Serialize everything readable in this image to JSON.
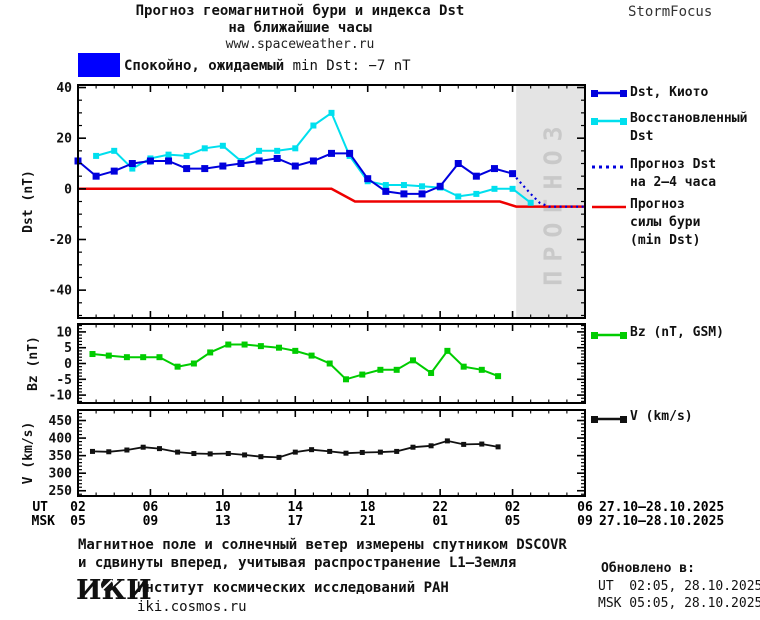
{
  "header": {
    "title_line1": "Прогноз геомагнитной бури и индекса Dst",
    "title_line2": "на ближайшие часы",
    "site": "www.spaceweather.ru",
    "brand": "StormFocus"
  },
  "status": {
    "label_bold": "Спокойно, ожидаемый",
    "label_rest": " min Dst: −7 nT",
    "box_color": "#0000ff"
  },
  "colors": {
    "dst_kyoto": "#0000dd",
    "dst_restored": "#00dfee",
    "dst_forecast": "#0000dd",
    "storm_forecast": "#ee0000",
    "bz": "#00cc00",
    "v": "#111111",
    "quiet_box": "#0000ff",
    "forecast_region_fill": "#e4e4e4",
    "forecast_region_text": "#c9c9c9"
  },
  "legend": {
    "items": [
      {
        "lines": [
          "Dst, Киото"
        ],
        "color": "#0000dd",
        "style": "solid",
        "squares": true
      },
      {
        "lines": [
          "Восстановленный",
          "Dst"
        ],
        "color": "#00dfee",
        "style": "solid",
        "squares": true
      },
      {
        "lines": [
          "Прогноз Dst",
          "на 2–4 часа"
        ],
        "color": "#0000dd",
        "style": "dotted",
        "squares": false
      },
      {
        "lines": [
          "Прогноз",
          "силы бури",
          "(min Dst)"
        ],
        "color": "#ee0000",
        "style": "solid",
        "squares": false
      },
      {
        "lines": [
          "Bz (nT, GSM)"
        ],
        "color": "#00cc00",
        "style": "solid",
        "squares": true
      },
      {
        "lines": [
          "V (km/s)"
        ],
        "color": "#111111",
        "style": "solid",
        "squares": true
      }
    ]
  },
  "axis": {
    "tick_hours": [
      2,
      6,
      10,
      14,
      18,
      22,
      26,
      30
    ],
    "ut_row_label": "UT",
    "msk_row_label": "MSK",
    "ut_ticks": [
      "02",
      "06",
      "10",
      "14",
      "18",
      "22",
      "02",
      "06"
    ],
    "msk_ticks": [
      "05",
      "09",
      "13",
      "17",
      "21",
      "01",
      "05",
      "09"
    ],
    "ut_date": "27.10–28.10.2025",
    "msk_date": "27.10–28.10.2025"
  },
  "chart_data": [
    {
      "type": "line",
      "panel": "dst",
      "ylabel": "Dst (nT)",
      "xlim": [
        2,
        30
      ],
      "ylim": [
        -51,
        41
      ],
      "yticks": [
        40,
        20,
        0,
        -20,
        -40
      ],
      "y_minor_step": 5,
      "forecast_region": {
        "x_start": 26.2,
        "x_end": 30,
        "label": "ПРОГНОЗ"
      },
      "series": [
        {
          "name": "Прогноз силы бури (min Dst)",
          "color": "#ee0000",
          "style": "solid",
          "width": 2.5,
          "marker_size": 0,
          "x": [
            2,
            16,
            17.3,
            25.3,
            26.2,
            30
          ],
          "y": [
            0,
            0,
            -5,
            -5,
            -7,
            -7
          ]
        },
        {
          "name": "Восстановленный Dst",
          "color": "#00dfee",
          "style": "solid",
          "width": 2,
          "marker_size": 6,
          "x": [
            3,
            4,
            5,
            6,
            7,
            8,
            9,
            10,
            11,
            12,
            13,
            14,
            15,
            16,
            17,
            18,
            19,
            20,
            21,
            22,
            23,
            24,
            25,
            26,
            27
          ],
          "y": [
            13,
            15,
            8,
            12,
            13.5,
            13,
            16,
            17,
            11,
            15,
            15,
            16,
            25,
            30,
            13,
            3,
            1.5,
            1.5,
            1,
            0.5,
            -3,
            -2,
            0,
            0,
            -5.5
          ]
        },
        {
          "name": "Dst, Киото",
          "color": "#0000dd",
          "style": "solid",
          "width": 2,
          "marker_size": 7,
          "x": [
            2,
            3,
            4,
            5,
            6,
            7,
            8,
            9,
            10,
            11,
            12,
            13,
            14,
            15,
            16,
            17,
            18,
            19,
            20,
            21,
            22,
            23,
            24,
            25,
            26
          ],
          "y": [
            11,
            5,
            7,
            10,
            11,
            11,
            8,
            8,
            9,
            10,
            11,
            12,
            9,
            11,
            14,
            14,
            4,
            -1,
            -2,
            -2,
            1,
            10,
            5,
            8,
            6
          ]
        },
        {
          "name": "Прогноз Dst на 2–4 часа",
          "color": "#0000dd",
          "style": "dotted",
          "width": 2.2,
          "marker_size": 0,
          "x": [
            26,
            26.5,
            27,
            27.5,
            28,
            30
          ],
          "y": [
            6,
            2,
            -2,
            -5.5,
            -7,
            -7
          ]
        }
      ]
    },
    {
      "type": "line",
      "panel": "bz",
      "ylabel": "Bz (nT)",
      "legend_label": "Bz (nT, GSM)",
      "xlim": [
        2,
        30
      ],
      "ylim": [
        -12.5,
        12.5
      ],
      "yticks": [
        10,
        5,
        0,
        -5,
        -10
      ],
      "y_minor_step": 1,
      "series": [
        {
          "name": "Bz (nT, GSM)",
          "color": "#00cc00",
          "style": "solid",
          "width": 2,
          "marker_size": 6,
          "x": [
            2.8,
            3.7,
            4.7,
            5.6,
            6.5,
            7.5,
            8.4,
            9.3,
            10.3,
            11.2,
            12.1,
            13.1,
            14,
            14.9,
            15.9,
            16.8,
            17.7,
            18.7,
            19.6,
            20.5,
            21.5,
            22.4,
            23.3,
            24.3,
            25.2
          ],
          "y": [
            3,
            2.5,
            2,
            2,
            2,
            -1,
            0,
            3.5,
            6,
            6,
            5.5,
            5,
            4,
            2.5,
            0,
            -5,
            -3.5,
            -2,
            -2,
            1,
            -3,
            4,
            -1,
            -2,
            -4
          ]
        }
      ]
    },
    {
      "type": "line",
      "panel": "v",
      "ylabel": "V (km/s)",
      "legend_label": "V (km/s)",
      "xlim": [
        2,
        30
      ],
      "ylim": [
        235,
        480
      ],
      "yticks": [
        450,
        400,
        350,
        300,
        250
      ],
      "y_minor_step": 10,
      "series": [
        {
          "name": "V (km/s)",
          "color": "#111111",
          "style": "solid",
          "width": 1.8,
          "marker_size": 5,
          "x": [
            2.8,
            3.7,
            4.7,
            5.6,
            6.5,
            7.5,
            8.4,
            9.3,
            10.3,
            11.2,
            12.1,
            13.1,
            14,
            14.9,
            15.9,
            16.8,
            17.7,
            18.7,
            19.6,
            20.5,
            21.5,
            22.4,
            23.3,
            24.3,
            25.2
          ],
          "y": [
            362,
            361,
            366,
            374,
            370,
            360,
            356,
            355,
            356,
            352,
            347,
            345,
            360,
            367,
            362,
            357,
            359,
            360,
            362,
            374,
            378,
            392,
            382,
            383,
            375
          ]
        }
      ]
    }
  ],
  "footer": {
    "note_line1": "Магнитное поле и солнечный ветер измерены спутником DSCOVR",
    "note_line2": "и сдвинуты вперед, учитывая распространение L1–Земля",
    "updated_label": "Обновлено в:",
    "updated_ut": "UT  02:05, 28.10.2025",
    "updated_msk": "MSK 05:05, 28.10.2025",
    "logo": "ИКИ",
    "institute": "Институт космических исследований РАН",
    "site": "iki.cosmos.ru"
  }
}
